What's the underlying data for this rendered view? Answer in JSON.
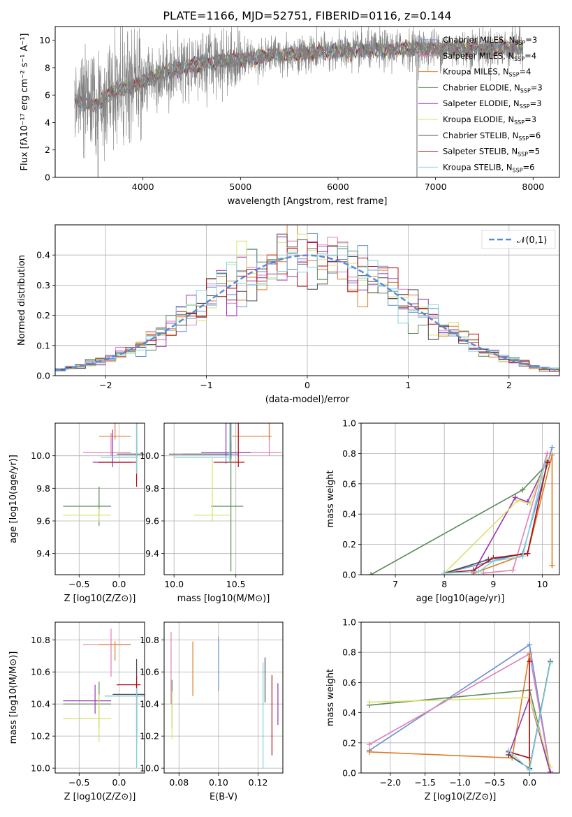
{
  "figure_title": "PLATE=1166, MJD=52751, FIBERID=0116, z=0.144",
  "models": [
    {
      "name": "Chabrier MILES",
      "legend": "Chabrier MILES, N",
      "nssp": "=3",
      "color": "#6a8fd6"
    },
    {
      "name": "Salpeter MILES",
      "legend": "Salpeter MILES, N",
      "nssp": "=4",
      "color": "#e07fb6"
    },
    {
      "name": "Kroupa MILES",
      "legend": "Kroupa MILES, N",
      "nssp": "=4",
      "color": "#e07b22"
    },
    {
      "name": "Chabrier ELODIE",
      "legend": "Chabrier ELODIE, N",
      "nssp": "=3",
      "color": "#5c8a5c"
    },
    {
      "name": "Salpeter ELODIE",
      "legend": "Salpeter ELODIE, N",
      "nssp": "=3",
      "color": "#9b35b5"
    },
    {
      "name": "Kroupa ELODIE",
      "legend": "Kroupa ELODIE, N",
      "nssp": "=3",
      "color": "#d8e26a"
    },
    {
      "name": "Chabrier STELIB",
      "legend": "Chabrier STELIB, N",
      "nssp": "=6",
      "color": "#4d4d4d"
    },
    {
      "name": "Salpeter STELIB",
      "legend": "Salpeter STELIB, N",
      "nssp": "=5",
      "color": "#b0101a"
    },
    {
      "name": "Kroupa STELIB",
      "legend": "Kroupa STELIB, N",
      "nssp": "=6",
      "color": "#7fd4de"
    }
  ],
  "nssp_sub": "SSP",
  "chart_data": [
    {
      "id": "spectrum",
      "type": "line",
      "xlabel": "wavelength [Angstrom, rest frame]",
      "ylabel": "Flux [fλ10⁻¹⁷ erg cm⁻² s⁻¹ A⁻¹]",
      "xlim": [
        3100,
        8270
      ],
      "ylim": [
        0,
        11
      ],
      "xticks": [
        "4000",
        "5000",
        "6000",
        "7000",
        "8000"
      ],
      "yticks": [
        "0",
        "2",
        "4",
        "6",
        "8",
        "10"
      ],
      "data_color": "#808080",
      "continuum_x": [
        3300,
        3500,
        3700,
        3900,
        4000,
        4200,
        4500,
        4800,
        5000,
        5300,
        5600,
        6000,
        6400,
        6800,
        7200,
        7600,
        7900
      ],
      "continuum_y": [
        5.6,
        5.2,
        6.3,
        6.6,
        7.0,
        7.6,
        8.2,
        8.5,
        8.6,
        8.9,
        9.0,
        9.2,
        9.3,
        9.4,
        9.4,
        9.4,
        9.45
      ],
      "data_range_x": [
        3300,
        7900
      ],
      "legend_loc": "upper right"
    },
    {
      "id": "residuals",
      "type": "line",
      "xlabel": "(data-model)/error",
      "ylabel": "Normed distribution",
      "xlim": [
        -2.5,
        2.5
      ],
      "ylim": [
        0,
        0.5
      ],
      "xticks": [
        "−2",
        "−1",
        "0",
        "1",
        "2"
      ],
      "yticks": [
        "0.0",
        "0.1",
        "0.2",
        "0.3",
        "0.4"
      ],
      "bin_width": 0.1,
      "gaussian_label": "𝒩(0,1)",
      "gaussian_color": "#5b8bd6",
      "legend_loc": "upper right"
    },
    {
      "id": "age_Z",
      "type": "scatter",
      "xlabel": "Z [log10(Z/Z⊙)]",
      "ylabel": "age  [log10(age/yr)]",
      "xlim": [
        -0.8,
        0.32
      ],
      "ylim": [
        9.27,
        10.2
      ],
      "xticks": [
        "−0.5",
        "0.0"
      ],
      "yticks": [
        "9.4",
        "9.6",
        "9.8",
        "10.0"
      ],
      "points": [
        {
          "x": 0.22,
          "y": 10.01,
          "xerr": [
            0.2,
            0.0
          ],
          "yerr": [
            0.02,
            0.1
          ]
        },
        {
          "x": -0.1,
          "y": 10.02,
          "xerr": [
            0.35,
            0.25
          ],
          "yerr": [
            0.02,
            0.12
          ]
        },
        {
          "x": -0.05,
          "y": 10.12,
          "xerr": [
            0.2,
            0.2
          ],
          "yerr": [
            0.02,
            0.34
          ]
        },
        {
          "x": -0.25,
          "y": 9.69,
          "xerr": [
            0.45,
            0.15
          ],
          "yerr": [
            0.12,
            0.12
          ]
        },
        {
          "x": -0.08,
          "y": 9.96,
          "xerr": [
            0.25,
            0.25
          ],
          "yerr": [
            0.03,
            0.2
          ]
        },
        {
          "x": -0.25,
          "y": 9.635,
          "xerr": [
            0.45,
            0.15
          ],
          "yerr": [
            0.04,
            0.04
          ]
        },
        {
          "x": 0.22,
          "y": 10.01,
          "xerr": [
            0.25,
            0.1
          ],
          "yerr": [
            0.12,
            0.55
          ]
        },
        {
          "x": 0.22,
          "y": 9.96,
          "xerr": [
            0.48,
            0.0
          ],
          "yerr": [
            0.15,
            0.65
          ]
        },
        {
          "x": 0.22,
          "y": 9.99,
          "xerr": [
            0.45,
            0.0
          ],
          "yerr": [
            0.1,
            0.55
          ]
        }
      ]
    },
    {
      "id": "age_mass",
      "type": "scatter",
      "xlabel": "mass [log10(M/M⊙)]",
      "ylabel": "",
      "xlim": [
        9.92,
        10.88
      ],
      "ylim": [
        9.27,
        10.2
      ],
      "xticks": [
        "10.0",
        "10.5"
      ],
      "yticks": [
        "9.4",
        "9.6",
        "9.8",
        "10.0"
      ],
      "points": [
        {
          "x": 10.42,
          "y": 10.01,
          "xerr": [
            0.35,
            0.1
          ],
          "yerr": [
            0.06,
            0.55
          ]
        },
        {
          "x": 10.77,
          "y": 10.02,
          "xerr": [
            0.3,
            0.1
          ],
          "yerr": [
            0.02,
            0.32
          ]
        },
        {
          "x": 10.77,
          "y": 10.12,
          "xerr": [
            0.3,
            0.02
          ],
          "yerr": [
            0.02,
            0.25
          ]
        },
        {
          "x": 10.46,
          "y": 9.69,
          "xerr": [
            0.16,
            0.1
          ],
          "yerr": [
            0.4,
            0.4
          ]
        },
        {
          "x": 10.42,
          "y": 10.02,
          "xerr": [
            0.2,
            0.2
          ],
          "yerr": [
            0.02,
            0.38
          ]
        },
        {
          "x": 10.31,
          "y": 9.635,
          "xerr": [
            0.15,
            0.15
          ],
          "yerr": [
            0.04,
            0.35
          ]
        },
        {
          "x": 10.46,
          "y": 10.01,
          "xerr": [
            0.5,
            0.0
          ],
          "yerr": [
            0.03,
            0.6
          ]
        },
        {
          "x": 10.52,
          "y": 9.96,
          "xerr": [
            0.2,
            0.05
          ],
          "yerr": [
            0.03,
            0.65
          ]
        },
        {
          "x": 10.45,
          "y": 9.99,
          "xerr": [
            0.45,
            0.0
          ],
          "yerr": [
            0.03,
            0.55
          ]
        }
      ]
    },
    {
      "id": "weight_age",
      "type": "line",
      "xlabel": "age  [log10(age/yr)]",
      "ylabel": "mass weight",
      "xlim": [
        6.3,
        10.35
      ],
      "ylim": [
        0,
        1
      ],
      "xticks": [
        "7",
        "8",
        "9",
        "10"
      ],
      "yticks": [
        "0.0",
        "0.2",
        "0.4",
        "0.6",
        "0.8",
        "1.0"
      ],
      "series": [
        {
          "x": [
            8.0,
            9.6,
            10.2
          ],
          "y": [
            0.01,
            0.14,
            0.84
          ]
        },
        {
          "x": [
            8.8,
            9.4,
            10.1
          ],
          "y": [
            0.01,
            0.03,
            0.8
          ]
        },
        {
          "x": [
            8.6,
            9.7,
            10.2,
            10.2
          ],
          "y": [
            0.01,
            0.14,
            0.79,
            0.06
          ]
        },
        {
          "x": [
            6.5,
            9.6,
            10.1
          ],
          "y": [
            0.0,
            0.56,
            0.73
          ]
        },
        {
          "x": [
            8.6,
            9.45,
            9.7,
            10.1
          ],
          "y": [
            0.02,
            0.51,
            0.48,
            0.75
          ]
        },
        {
          "x": [
            8.0,
            9.5,
            9.75,
            10.1
          ],
          "y": [
            0.01,
            0.49,
            0.47,
            0.76
          ]
        },
        {
          "x": [
            8.0,
            8.9,
            9.7,
            10.1
          ],
          "y": [
            0.01,
            0.1,
            0.14,
            0.74
          ]
        },
        {
          "x": [
            8.0,
            8.6,
            9.0,
            9.7,
            10.1
          ],
          "y": [
            0.01,
            0.03,
            0.11,
            0.14,
            0.74
          ]
        },
        {
          "x": [
            8.0,
            8.7,
            9.0,
            9.6,
            10.05
          ],
          "y": [
            0.01,
            0.02,
            0.09,
            0.12,
            0.73
          ]
        }
      ]
    },
    {
      "id": "mass_Z",
      "type": "scatter",
      "xlabel": "Z [log10(Z/Z⊙)]",
      "ylabel": "mass [log10(M/M⊙)]",
      "xlim": [
        -0.8,
        0.32
      ],
      "ylim": [
        9.97,
        10.91
      ],
      "xticks": [
        "−0.5",
        "0.0"
      ],
      "yticks": [
        "10.0",
        "10.2",
        "10.4",
        "10.6",
        "10.8"
      ],
      "points": [
        {
          "x": 0.22,
          "y": 10.45,
          "xerr": [
            0.4,
            0.1
          ],
          "yerr": [
            0.45,
            0.2
          ]
        },
        {
          "x": -0.1,
          "y": 10.77,
          "xerr": [
            0.35,
            0.25
          ],
          "yerr": [
            0.2,
            0.1
          ]
        },
        {
          "x": -0.05,
          "y": 10.77,
          "xerr": [
            0.2,
            0.2
          ],
          "yerr": [
            0.1,
            0.02
          ]
        },
        {
          "x": -0.25,
          "y": 10.4,
          "xerr": [
            0.45,
            0.15
          ],
          "yerr": [
            0.15,
            0.14
          ]
        },
        {
          "x": -0.3,
          "y": 10.42,
          "xerr": [
            0.4,
            0.2
          ],
          "yerr": [
            0.08,
            0.1
          ]
        },
        {
          "x": -0.25,
          "y": 10.31,
          "xerr": [
            0.45,
            0.15
          ],
          "yerr": [
            0.15,
            0.15
          ]
        },
        {
          "x": 0.22,
          "y": 10.46,
          "xerr": [
            0.3,
            0.1
          ],
          "yerr": [
            0.3,
            0.22
          ]
        },
        {
          "x": 0.22,
          "y": 10.52,
          "xerr": [
            0.25,
            0.05
          ],
          "yerr": [
            0.3,
            0.05
          ]
        },
        {
          "x": 0.22,
          "y": 10.45,
          "xerr": [
            0.4,
            0.05
          ],
          "yerr": [
            0.45,
            0.05
          ]
        }
      ]
    },
    {
      "id": "mass_EBV",
      "type": "scatter",
      "xlabel": "E(B-V)",
      "ylabel": "",
      "xlim": [
        0.0725,
        0.1325
      ],
      "ylim": [
        9.97,
        10.91
      ],
      "xticks": [
        "0.08",
        "0.10",
        "0.12"
      ],
      "yticks": [
        "10.0",
        "10.2",
        "10.4",
        "10.6",
        "10.8"
      ],
      "points": [
        {
          "x": 0.1,
          "y": 10.65,
          "yerr": [
            0.17,
            0.17
          ]
        },
        {
          "x": 0.076,
          "y": 10.7,
          "yerr": [
            0.3,
            0.15
          ]
        },
        {
          "x": 0.087,
          "y": 10.62,
          "yerr": [
            0.17,
            0.17
          ]
        },
        {
          "x": 0.0765,
          "y": 10.4,
          "yerr": [
            0.15,
            0.15
          ]
        },
        {
          "x": 0.13,
          "y": 10.4,
          "yerr": [
            0.13,
            0.13
          ]
        },
        {
          "x": 0.0765,
          "y": 10.3,
          "yerr": [
            0.12,
            0.18
          ]
        },
        {
          "x": 0.1235,
          "y": 10.55,
          "yerr": [
            0.14,
            0.14
          ]
        },
        {
          "x": 0.127,
          "y": 10.33,
          "yerr": [
            0.25,
            0.25
          ]
        },
        {
          "x": 0.1225,
          "y": 10.33,
          "yerr": [
            0.33,
            0.33
          ]
        }
      ]
    },
    {
      "id": "weight_Z",
      "type": "line",
      "xlabel": "Z [log10(Z/Z⊙)]",
      "ylabel": "mass weight",
      "xlim": [
        -2.42,
        0.43
      ],
      "ylim": [
        0,
        1
      ],
      "xticks": [
        "−2.0",
        "−1.5",
        "−1.0",
        "−0.5",
        "0.0"
      ],
      "yticks": [
        "0.0",
        "0.2",
        "0.4",
        "0.6",
        "0.8",
        "1.0"
      ],
      "series": [
        {
          "x": [
            -2.3,
            0.0,
            0.3
          ],
          "y": [
            0.15,
            0.85,
            0.01
          ]
        },
        {
          "x": [
            -2.3,
            0.0,
            0.3
          ],
          "y": [
            0.19,
            0.79,
            0.01
          ]
        },
        {
          "x": [
            -2.3,
            -0.25,
            0.0,
            0.0
          ],
          "y": [
            0.14,
            0.1,
            0.79,
            0.02
          ]
        },
        {
          "x": [
            -2.3,
            0.0,
            0.3
          ],
          "y": [
            0.45,
            0.55,
            0.0
          ]
        },
        {
          "x": [
            -0.3,
            0.0,
            0.3
          ],
          "y": [
            0.12,
            0.5,
            0.0
          ]
        },
        {
          "x": [
            -2.3,
            0.0,
            0.3
          ],
          "y": [
            0.47,
            0.5,
            0.04
          ]
        },
        {
          "x": [
            -0.3,
            0.0,
            0.3
          ],
          "y": [
            0.12,
            0.03,
            0.74
          ]
        },
        {
          "x": [
            -0.3,
            0.0,
            0.0
          ],
          "y": [
            0.14,
            0.1,
            0.74
          ]
        },
        {
          "x": [
            -0.3,
            0.0,
            0.3
          ],
          "y": [
            0.15,
            0.02,
            0.73
          ]
        }
      ]
    }
  ]
}
